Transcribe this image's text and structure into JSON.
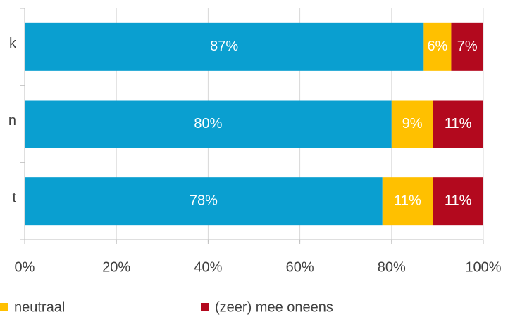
{
  "chart_data": {
    "type": "stacked-bar-horizontal",
    "categories": [
      "k",
      "n",
      "t"
    ],
    "series": [
      {
        "color": "#0a9fd0",
        "values": [
          87,
          80,
          78
        ],
        "value_labels": [
          "87%",
          "80%",
          "78%"
        ]
      },
      {
        "name": "neutraal",
        "color": "#ffc000",
        "values": [
          6,
          9,
          11
        ],
        "value_labels": [
          "6%",
          "9%",
          "11%"
        ]
      },
      {
        "name": "(zeer) mee oneens",
        "color": "#b3091e",
        "values": [
          7,
          11,
          11
        ],
        "value_labels": [
          "7%",
          "11%",
          "11%"
        ]
      }
    ],
    "xlim": [
      0,
      100
    ],
    "xticks": [
      {
        "value": 0,
        "label": "0%"
      },
      {
        "value": 20,
        "label": "20%"
      },
      {
        "value": 40,
        "label": "40%"
      },
      {
        "value": 60,
        "label": "60%"
      },
      {
        "value": 80,
        "label": "80%"
      },
      {
        "value": 100,
        "label": "100%"
      }
    ],
    "grid": true
  }
}
